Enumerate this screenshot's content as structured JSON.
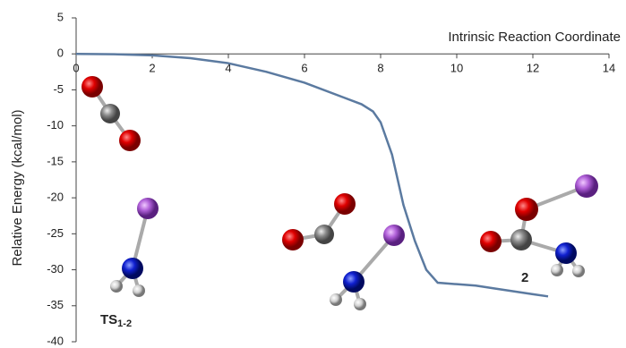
{
  "chart_data": {
    "type": "line",
    "x_label": "Intrinsic Reaction Coordinate",
    "y_label": "Relative Energy (kcal/mol)",
    "x": [
      0,
      1,
      2,
      3,
      4,
      5,
      6,
      7,
      7.5,
      7.8,
      8,
      8.3,
      8.6,
      8.9,
      9.2,
      9.5,
      10,
      10.5,
      11,
      12,
      12.4
    ],
    "series": [
      {
        "color": "#5b7aa0",
        "values": [
          0,
          -0.05,
          -0.2,
          -0.6,
          -1.3,
          -2.5,
          -4,
          -6,
          -7,
          -8,
          -9.5,
          -14,
          -21,
          -26,
          -30,
          -31.8,
          -32,
          -32.2,
          -32.6,
          -33.4,
          -33.7
        ]
      }
    ],
    "xlim": [
      0,
      14
    ],
    "xticks": [
      0,
      2,
      4,
      6,
      8,
      10,
      12,
      14
    ],
    "ylim": [
      -40,
      5
    ],
    "yticks": [
      -40,
      -35,
      -30,
      -25,
      -20,
      -15,
      -10,
      -5,
      0,
      5
    ],
    "annotations": [
      {
        "text": "TS",
        "subscript": "1-2"
      },
      {
        "text": "2"
      }
    ]
  }
}
